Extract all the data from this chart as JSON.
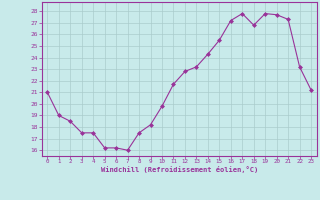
{
  "x": [
    0,
    1,
    2,
    3,
    4,
    5,
    6,
    7,
    8,
    9,
    10,
    11,
    12,
    13,
    14,
    15,
    16,
    17,
    18,
    19,
    20,
    21,
    22,
    23
  ],
  "y": [
    21,
    19,
    18.5,
    17.5,
    17.5,
    16.2,
    16.2,
    16.0,
    17.5,
    18.2,
    19.8,
    21.7,
    22.8,
    23.2,
    24.3,
    25.5,
    27.2,
    27.8,
    26.8,
    27.8,
    27.7,
    27.3,
    23.2,
    21.2
  ],
  "line_color": "#993399",
  "marker": "D",
  "marker_size": 2.0,
  "xlabel": "Windchill (Refroidissement éolien,°C)",
  "yticks": [
    16,
    17,
    18,
    19,
    20,
    21,
    22,
    23,
    24,
    25,
    26,
    27,
    28
  ],
  "xticks": [
    0,
    1,
    2,
    3,
    4,
    5,
    6,
    7,
    8,
    9,
    10,
    11,
    12,
    13,
    14,
    15,
    16,
    17,
    18,
    19,
    20,
    21,
    22,
    23
  ],
  "ylim": [
    15.5,
    28.8
  ],
  "xlim": [
    -0.5,
    23.5
  ],
  "bg_color": "#c8eaea",
  "grid_color": "#aacccc",
  "spine_color": "#993399"
}
